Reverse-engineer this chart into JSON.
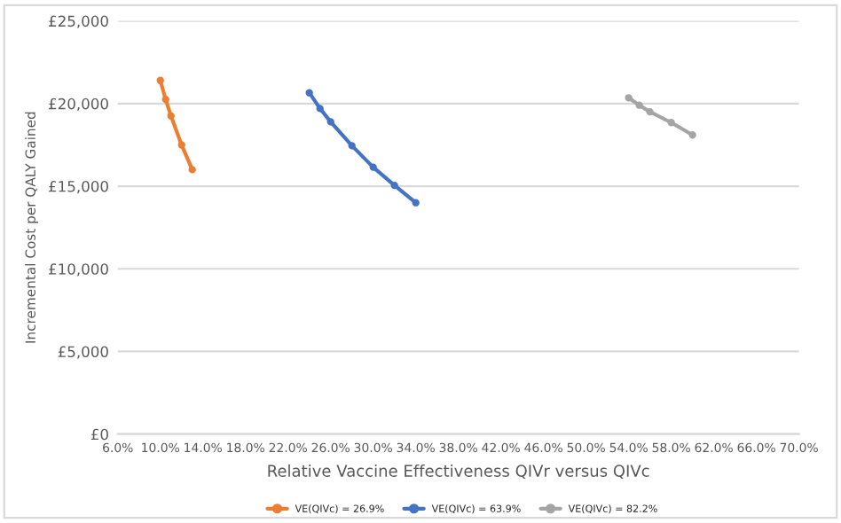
{
  "chart_data": {
    "type": "line",
    "xlabel": "Relative Vaccine Effectiveness QIVr versus QIVc",
    "ylabel": "Incremental Cost per QALY Gained",
    "xlim": [
      6,
      70
    ],
    "xticks": [
      {
        "value": 6,
        "label": "6.0%"
      },
      {
        "value": 10,
        "label": "10.0%"
      },
      {
        "value": 14,
        "label": "14.0%"
      },
      {
        "value": 18,
        "label": "18.0%"
      },
      {
        "value": 22,
        "label": "22.0%"
      },
      {
        "value": 26,
        "label": "26.0%"
      },
      {
        "value": 30,
        "label": "30.0%"
      },
      {
        "value": 34,
        "label": "34.0%"
      },
      {
        "value": 38,
        "label": "38.0%"
      },
      {
        "value": 42,
        "label": "42.0%"
      },
      {
        "value": 46,
        "label": "46.0%"
      },
      {
        "value": 50,
        "label": "50.0%"
      },
      {
        "value": 54,
        "label": "54.0%"
      },
      {
        "value": 58,
        "label": "58.0%"
      },
      {
        "value": 62,
        "label": "62.0%"
      },
      {
        "value": 66,
        "label": "66.0%"
      },
      {
        "value": 70,
        "label": "70.0%"
      }
    ],
    "ylim": [
      0,
      25000
    ],
    "yticks": [
      {
        "value": 0,
        "label": "£0"
      },
      {
        "value": 5000,
        "label": "£5,000"
      },
      {
        "value": 10000,
        "label": "£10,000"
      },
      {
        "value": 15000,
        "label": "£15,000"
      },
      {
        "value": 20000,
        "label": "£20,000"
      },
      {
        "value": 25000,
        "label": "£25,000"
      }
    ],
    "grid": "y",
    "legend": "bottom",
    "marker": "circle",
    "line_style": "solid",
    "series": [
      {
        "name": "VE(QIVc) = 26.9%",
        "color": "#ed7d31",
        "x": [
          10,
          10.5,
          11,
          12,
          13
        ],
        "values": [
          21400,
          20250,
          19250,
          17500,
          16000
        ]
      },
      {
        "name": "VE(QIVc) = 63.9%",
        "color": "#4472c4",
        "x": [
          24,
          25,
          26,
          28,
          30,
          32,
          34
        ],
        "values": [
          20650,
          19700,
          18900,
          17450,
          16150,
          15050,
          14000
        ]
      },
      {
        "name": "VE(QIVc) = 82.2%",
        "color": "#a5a5a5",
        "x": [
          54,
          55,
          56,
          58,
          60
        ],
        "values": [
          20350,
          19900,
          19500,
          18850,
          18100
        ]
      }
    ]
  }
}
